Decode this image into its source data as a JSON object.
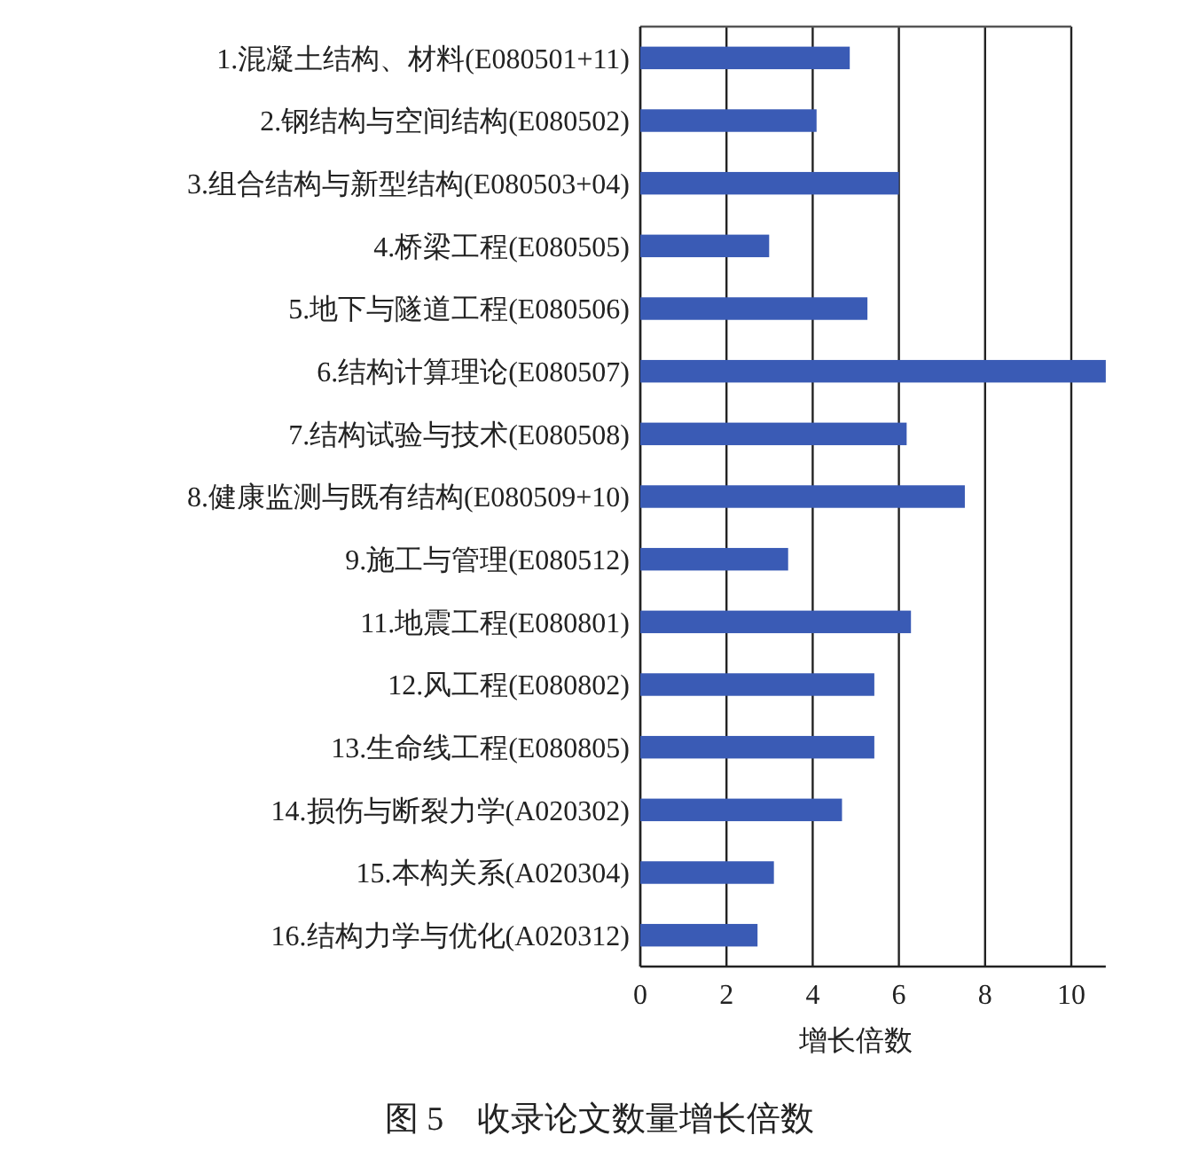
{
  "chart_data": {
    "type": "bar",
    "orientation": "horizontal",
    "categories": [
      "1.混凝土结构、材料(E080501+11)",
      "2.钢结构与空间结构(E080502)",
      "3.组合结构与新型结构(E080503+04)",
      "4.桥梁工程(E080505)",
      "5.地下与隧道工程(E080506)",
      "6.结构计算理论(E080507)",
      "7.结构试验与技术(E080508)",
      "8.健康监测与既有结构(E080509+10)",
      "9.施工与管理(E080512)",
      "11.地震工程(E080801)",
      "12.风工程(E080802)",
      "13.生命线工程(E080805)",
      "14.损伤与断裂力学(A020302)",
      "15.本构关系(A020304)",
      "16.结构力学与优化(A020312)"
    ],
    "values": [
      4.86,
      4.09,
      6.0,
      2.99,
      5.27,
      10.8,
      6.18,
      7.53,
      3.43,
      6.28,
      5.43,
      5.43,
      4.68,
      3.1,
      2.72
    ],
    "color": "#3a5bb5",
    "xlim": [
      0,
      10.8
    ],
    "xticks": [
      0,
      2,
      4,
      6,
      8,
      10
    ],
    "grid": "x",
    "xlabel": "增长倍数",
    "annotations": [
      "图 5　收录论文数量增长倍数"
    ]
  }
}
